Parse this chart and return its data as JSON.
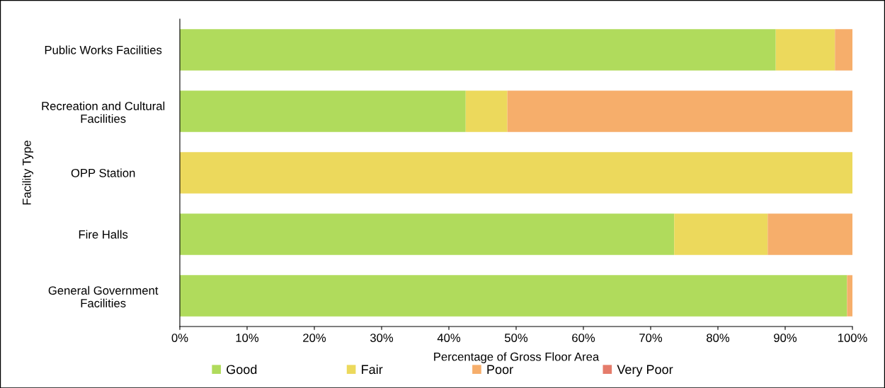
{
  "chart_data": {
    "type": "bar",
    "orientation": "horizontal",
    "stacked": true,
    "xlabel": "Percentage of Gross Floor Area",
    "ylabel": "Facility Type",
    "categories": [
      "Public Works Facilities",
      "Recreation and Cultural\nFacilities",
      "OPP Station",
      "Fire Halls",
      "General Government\nFacilities"
    ],
    "series": [
      {
        "name": "Good",
        "color": "#b0db5c",
        "values": [
          88.6,
          42.5,
          0,
          73.5,
          99.2
        ]
      },
      {
        "name": "Fair",
        "color": "#ecd95c",
        "values": [
          8.8,
          6.2,
          100,
          13.9,
          0
        ]
      },
      {
        "name": "Poor",
        "color": "#f6ae6b",
        "values": [
          2.6,
          51.3,
          0,
          12.6,
          0.8
        ]
      },
      {
        "name": "Very Poor",
        "color": "#e57c6b",
        "values": [
          0,
          0,
          0,
          0,
          0
        ]
      }
    ],
    "xlim": [
      0,
      100
    ],
    "xticks": [
      {
        "value": 0,
        "label": "0%"
      },
      {
        "value": 10,
        "label": "10%"
      },
      {
        "value": 20,
        "label": "20%"
      },
      {
        "value": 30,
        "label": "30%"
      },
      {
        "value": 40,
        "label": "40%"
      },
      {
        "value": 50,
        "label": "50%"
      },
      {
        "value": 60,
        "label": "60%"
      },
      {
        "value": 70,
        "label": "70%"
      },
      {
        "value": 80,
        "label": "80%"
      },
      {
        "value": 90,
        "label": "90%"
      },
      {
        "value": 100,
        "label": "100%"
      }
    ],
    "grid": false,
    "legend": "bottom"
  }
}
